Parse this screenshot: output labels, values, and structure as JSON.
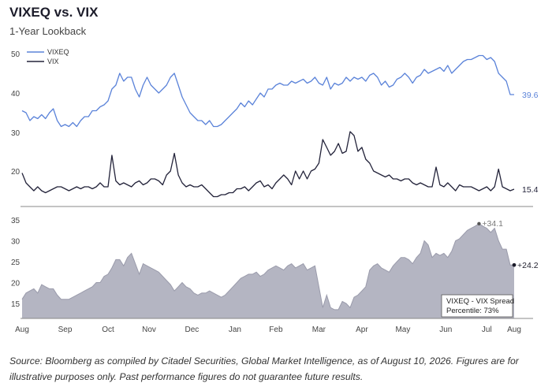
{
  "header": {
    "title": "VIXEQ vs. VIX",
    "subtitle": "1-Year Lookback"
  },
  "footnote": "Source: Bloomberg as compiled by Citadel Securities, Global Market Intelligence, as of August 10, 2026. Figures are for illustrative purposes only. Past performance figures do not guarantee future results.",
  "colors": {
    "vixeq": "#5b83d9",
    "vix": "#23233a",
    "spread_fill": "#b4b5c2",
    "spread_line": "#9a9bab",
    "axis": "#888888"
  },
  "chart_data": [
    {
      "type": "line",
      "title": "",
      "ylim": [
        26,
        53
      ],
      "yticks": [
        30,
        40,
        50
      ],
      "legend": {
        "placement": "top-left",
        "entries": [
          "VIXEQ"
        ]
      },
      "series": [
        {
          "name": "VIXEQ",
          "end_label": "39.6",
          "x": [
            0,
            2,
            4,
            6,
            8,
            10,
            12,
            14,
            16,
            18,
            20,
            22,
            24,
            26,
            28,
            30,
            32,
            34,
            36,
            38,
            40,
            42,
            44,
            46,
            48,
            50,
            52,
            54,
            56,
            58,
            60,
            62,
            64,
            66,
            68,
            70,
            72,
            74,
            76,
            78,
            80,
            82,
            84,
            86,
            88,
            90,
            92,
            94,
            96,
            98,
            100,
            102,
            104,
            106,
            108,
            110,
            112,
            114,
            116,
            118,
            120,
            122,
            124,
            126,
            128,
            130,
            132,
            134,
            136,
            138,
            140,
            142,
            144,
            146,
            148,
            150,
            152,
            154,
            156,
            158,
            160,
            162,
            164,
            166,
            168,
            170,
            172,
            174,
            176,
            178,
            180,
            182,
            184,
            186,
            188,
            190,
            192,
            194,
            196,
            198,
            200,
            202,
            204,
            206,
            208,
            210,
            212,
            214,
            216,
            218,
            220,
            222,
            224,
            226,
            228,
            230,
            232,
            234,
            236,
            238,
            240,
            242,
            244,
            246,
            248,
            250,
            252
          ],
          "values": [
            35.5,
            35,
            33,
            34,
            33.5,
            34.5,
            33.5,
            35,
            36,
            33,
            31.5,
            32,
            31.5,
            32.5,
            31.5,
            33,
            34,
            34,
            35.5,
            35.5,
            36.5,
            37,
            38,
            41,
            42,
            45,
            43,
            44,
            44,
            41,
            39,
            42,
            44,
            42,
            41,
            40,
            41,
            42,
            44,
            45,
            42,
            39,
            37,
            35,
            34,
            33,
            33,
            32,
            33,
            31.5,
            31.5,
            32,
            33,
            34,
            35,
            36,
            37.5,
            36.5,
            38,
            37,
            38.5,
            40,
            39,
            41,
            41,
            42,
            42.5,
            42,
            42,
            43,
            42.5,
            43,
            43.5,
            42.5,
            43,
            44,
            42.5,
            42,
            44,
            41,
            42.5,
            42,
            42.5,
            44,
            43,
            44,
            43.5,
            44,
            43,
            44.5,
            45,
            44,
            42,
            43,
            41.5,
            42,
            43.5,
            44,
            45,
            44,
            42.5,
            44,
            44.5,
            46,
            45,
            45.5,
            46,
            46.5,
            45.5,
            47,
            45,
            46,
            47,
            48,
            48.5,
            48.5,
            49,
            49.5,
            49.5,
            48.5,
            49,
            48,
            45,
            44,
            43,
            39.6,
            39.6
          ]
        }
      ]
    },
    {
      "type": "line",
      "title": "",
      "ylim": [
        12.5,
        32
      ],
      "yticks": [
        20
      ],
      "legend": {
        "placement": "top-left",
        "entries": [
          "VIX"
        ]
      },
      "series": [
        {
          "name": "VIX",
          "end_label": "15.4",
          "x": [
            0,
            2,
            4,
            6,
            8,
            10,
            12,
            14,
            16,
            18,
            20,
            22,
            24,
            26,
            28,
            30,
            32,
            34,
            36,
            38,
            40,
            42,
            44,
            46,
            48,
            50,
            52,
            54,
            56,
            58,
            60,
            62,
            64,
            66,
            68,
            70,
            72,
            74,
            76,
            78,
            80,
            82,
            84,
            86,
            88,
            90,
            92,
            94,
            96,
            98,
            100,
            102,
            104,
            106,
            108,
            110,
            112,
            114,
            116,
            118,
            120,
            122,
            124,
            126,
            128,
            130,
            132,
            134,
            136,
            138,
            140,
            142,
            144,
            146,
            148,
            150,
            152,
            154,
            156,
            158,
            160,
            162,
            164,
            166,
            168,
            170,
            172,
            174,
            176,
            178,
            180,
            182,
            184,
            186,
            188,
            190,
            192,
            194,
            196,
            198,
            200,
            202,
            204,
            206,
            208,
            210,
            212,
            214,
            216,
            218,
            220,
            222,
            224,
            226,
            228,
            230,
            232,
            234,
            236,
            238,
            240,
            242,
            244,
            246,
            248,
            250,
            252
          ],
          "values": [
            19.5,
            17,
            16,
            15,
            16,
            15,
            14.5,
            15,
            15.5,
            16,
            16,
            15.5,
            15,
            15.5,
            16,
            15.5,
            16,
            16,
            15.5,
            16,
            17,
            16,
            16,
            24,
            17.5,
            16.5,
            17,
            16.5,
            16,
            17,
            17.5,
            16.5,
            17,
            18,
            18,
            17.5,
            16.5,
            19,
            20,
            24.5,
            19,
            17,
            16,
            16.5,
            16,
            16,
            16.5,
            15.5,
            14.5,
            13.5,
            13.5,
            14,
            14,
            14.5,
            14.5,
            15.5,
            15.5,
            16,
            15,
            16,
            17,
            17.5,
            16,
            16.5,
            15.5,
            17,
            18,
            19,
            18,
            16.5,
            20,
            18,
            20,
            18,
            20,
            20.5,
            22,
            28,
            26,
            24,
            25,
            27,
            24.5,
            25,
            30,
            29,
            25,
            26,
            23,
            22,
            20,
            19.5,
            19,
            18.5,
            19,
            18,
            18,
            17.5,
            18,
            18,
            17,
            16.5,
            17,
            16.5,
            16,
            16,
            21,
            16.5,
            16,
            17,
            16,
            15,
            16.5,
            16,
            16,
            16,
            15.5,
            15,
            15.5,
            16,
            15,
            16,
            20.5,
            16,
            15.5,
            15,
            15.4
          ]
        }
      ]
    },
    {
      "type": "area",
      "title": "",
      "xlabel": "",
      "ylabel": "",
      "ylim": [
        10.5,
        37
      ],
      "yticks": [
        15,
        20,
        25,
        30,
        35
      ],
      "categories": [
        "Aug",
        "Sep",
        "Oct",
        "Nov",
        "Dec",
        "Jan",
        "Feb",
        "Mar",
        "Apr",
        "May",
        "Jun",
        "Jul",
        "Aug"
      ],
      "category_positions": [
        0,
        22,
        44,
        65,
        87,
        109,
        130,
        152,
        174,
        195,
        217,
        238,
        252
      ],
      "max_label": "+34.1",
      "end_label": "+24.2",
      "box": {
        "line1": "VIXEQ - VIX Spread",
        "line2": "Percentile: 73%"
      },
      "series": [
        {
          "name": "VIXEQ - VIX Spread",
          "x": [
            0,
            2,
            4,
            6,
            8,
            10,
            12,
            14,
            16,
            18,
            20,
            22,
            24,
            26,
            28,
            30,
            32,
            34,
            36,
            38,
            40,
            42,
            44,
            46,
            48,
            50,
            52,
            54,
            56,
            58,
            60,
            62,
            64,
            66,
            68,
            70,
            72,
            74,
            76,
            78,
            80,
            82,
            84,
            86,
            88,
            90,
            92,
            94,
            96,
            98,
            100,
            102,
            104,
            106,
            108,
            110,
            112,
            114,
            116,
            118,
            120,
            122,
            124,
            126,
            128,
            130,
            132,
            134,
            136,
            138,
            140,
            142,
            144,
            146,
            148,
            150,
            152,
            154,
            156,
            158,
            160,
            162,
            164,
            166,
            168,
            170,
            172,
            174,
            176,
            178,
            180,
            182,
            184,
            186,
            188,
            190,
            192,
            194,
            196,
            198,
            200,
            202,
            204,
            206,
            208,
            210,
            212,
            214,
            216,
            218,
            220,
            222,
            224,
            226,
            228,
            230,
            232,
            234,
            236,
            238,
            240,
            242,
            244,
            246,
            248,
            250,
            252
          ],
          "values": [
            16,
            17.5,
            18,
            18.5,
            17.5,
            19.5,
            19,
            18.5,
            18.5,
            17,
            16,
            16,
            16,
            16.5,
            17,
            17.5,
            18,
            18.5,
            19,
            20,
            20,
            21.5,
            22,
            23.5,
            25.5,
            25.5,
            24,
            26,
            27,
            24.5,
            22,
            24.5,
            24,
            23.5,
            23,
            22.5,
            21.5,
            20.5,
            19.5,
            18,
            19,
            20,
            19,
            18.5,
            17.5,
            17,
            17.5,
            17.5,
            18,
            17.5,
            17,
            16.5,
            17,
            18,
            19,
            20,
            21,
            21.5,
            22,
            22,
            22.5,
            21.5,
            22,
            23,
            23.5,
            24,
            23.5,
            23,
            24,
            24.5,
            23.5,
            24,
            24.5,
            23,
            23.5,
            24,
            19,
            14,
            17,
            14,
            13.5,
            13.5,
            15.5,
            15,
            14,
            16.5,
            17,
            18,
            19,
            23,
            24,
            24.5,
            23.5,
            23,
            22.5,
            24,
            25,
            26,
            26,
            25.5,
            24.5,
            26,
            27,
            30,
            29,
            26,
            27,
            26.5,
            27,
            26,
            27.5,
            30,
            30.5,
            31.5,
            32.5,
            33,
            33.5,
            34.1,
            33.5,
            33,
            32,
            33,
            30,
            28,
            28,
            24.2,
            24.2
          ]
        }
      ]
    }
  ]
}
